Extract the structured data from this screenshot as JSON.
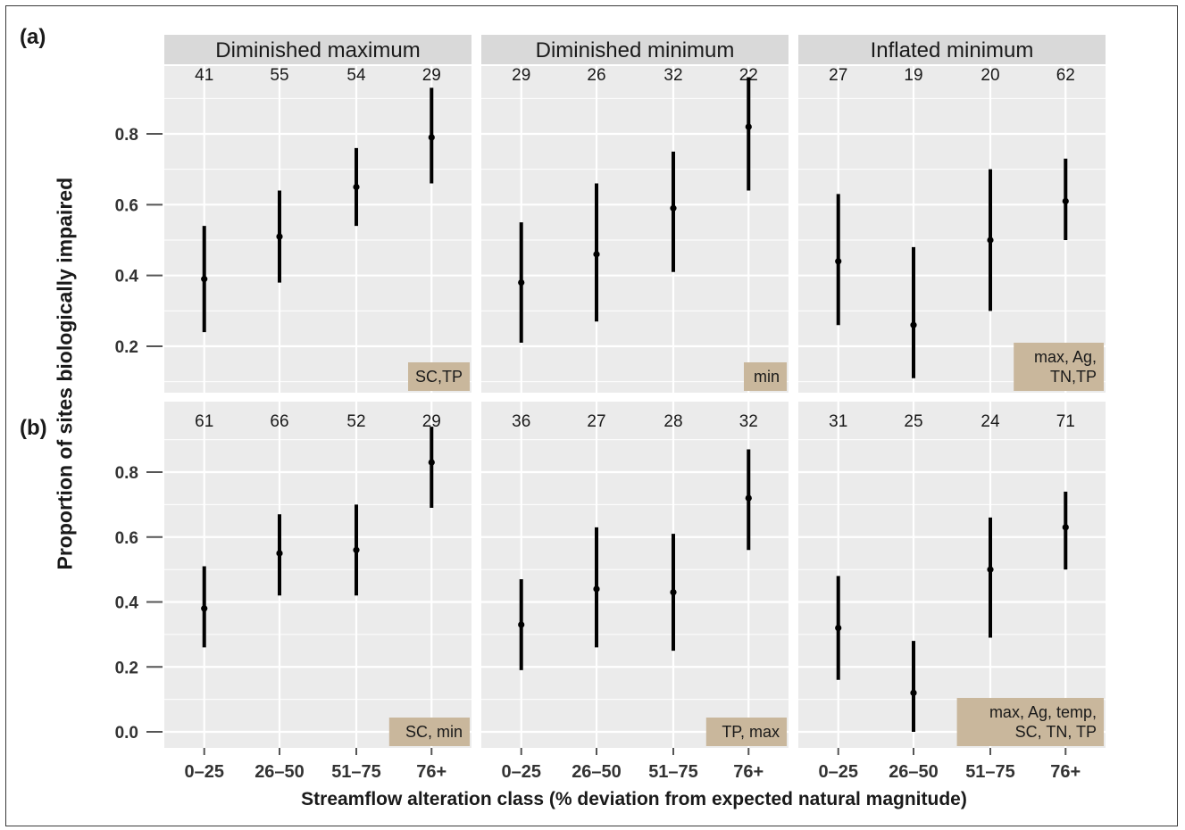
{
  "chart_data": {
    "type": "scatter",
    "subtype": "point-range (proportion with error bars)",
    "ylabel": "Proportion of sites biologically impaired",
    "xlabel": "Streamflow alteration class (% deviation from expected natural magnitude)",
    "categories": [
      "0–25",
      "26–50",
      "51–75",
      "76+"
    ],
    "grid": true,
    "facets": [
      "Diminished maximum",
      "Diminished minimum",
      "Inflated minimum"
    ],
    "rows": [
      {
        "label": "(a)",
        "ylim": [
          0.1,
          0.95
        ],
        "yticks": [
          0.2,
          0.4,
          0.6,
          0.8
        ],
        "ytick_labels": [
          "0.2",
          "0.4",
          "0.6",
          "0.8"
        ],
        "panels": [
          {
            "facet": "Diminished maximum",
            "n": [
              "41",
              "55",
              "54",
              "29"
            ],
            "values": [
              0.39,
              0.51,
              0.65,
              0.79
            ],
            "lower": [
              0.24,
              0.38,
              0.54,
              0.66
            ],
            "upper": [
              0.54,
              0.64,
              0.76,
              0.93
            ],
            "note": [
              "SC,TP"
            ]
          },
          {
            "facet": "Diminished minimum",
            "n": [
              "29",
              "26",
              "32",
              "22"
            ],
            "values": [
              0.38,
              0.46,
              0.59,
              0.82
            ],
            "lower": [
              0.21,
              0.27,
              0.41,
              0.64
            ],
            "upper": [
              0.55,
              0.66,
              0.75,
              0.96
            ],
            "note": [
              "min"
            ]
          },
          {
            "facet": "Inflated minimum",
            "n": [
              "27",
              "19",
              "20",
              "62"
            ],
            "values": [
              0.44,
              0.26,
              0.5,
              0.61
            ],
            "lower": [
              0.26,
              0.11,
              0.3,
              0.5
            ],
            "upper": [
              0.63,
              0.48,
              0.7,
              0.73
            ],
            "note": [
              "max, Ag,",
              "TN,TP"
            ]
          }
        ]
      },
      {
        "label": "(b)",
        "ylim": [
          -0.02,
          0.95
        ],
        "yticks": [
          0.0,
          0.2,
          0.4,
          0.6,
          0.8
        ],
        "ytick_labels": [
          "0.0",
          "0.2",
          "0.4",
          "0.6",
          "0.8"
        ],
        "panels": [
          {
            "facet": "Diminished maximum",
            "n": [
              "61",
              "66",
              "52",
              "29"
            ],
            "values": [
              0.38,
              0.55,
              0.56,
              0.83
            ],
            "lower": [
              0.26,
              0.42,
              0.42,
              0.69
            ],
            "upper": [
              0.51,
              0.67,
              0.7,
              0.94
            ],
            "note": [
              "SC, min"
            ]
          },
          {
            "facet": "Diminished minimum",
            "n": [
              "36",
              "27",
              "28",
              "32"
            ],
            "values": [
              0.33,
              0.44,
              0.43,
              0.72
            ],
            "lower": [
              0.19,
              0.26,
              0.25,
              0.56
            ],
            "upper": [
              0.47,
              0.63,
              0.61,
              0.87
            ],
            "note": [
              "TP, max"
            ]
          },
          {
            "facet": "Inflated minimum",
            "n": [
              "31",
              "25",
              "24",
              "71"
            ],
            "values": [
              0.32,
              0.12,
              0.5,
              0.63
            ],
            "lower": [
              0.16,
              0.0,
              0.29,
              0.5
            ],
            "upper": [
              0.48,
              0.28,
              0.66,
              0.74
            ],
            "note": [
              "max, Ag, temp,",
              "SC, TN, TP"
            ]
          }
        ]
      }
    ],
    "colors": {
      "panel_bg": "#ebebeb",
      "grid": "#ffffff",
      "strip": "#d9d9d9",
      "note_box": "#c9b79c",
      "mark": "#000000"
    }
  }
}
